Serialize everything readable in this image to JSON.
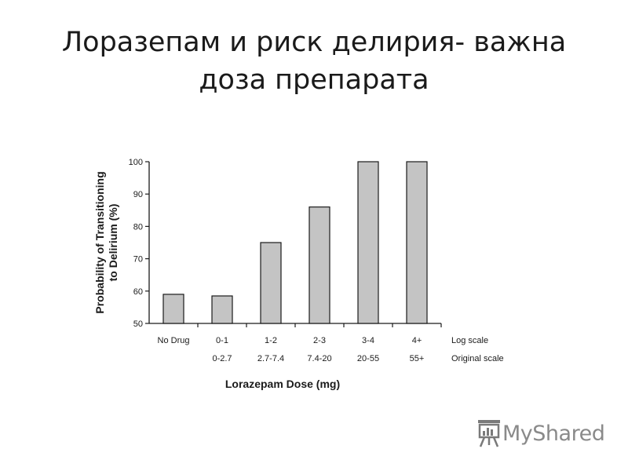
{
  "slide": {
    "title_line1": "Лоразепам и риск делирия- важна",
    "title_line2": "доза препарата"
  },
  "chart_data": {
    "type": "bar",
    "categories": [
      "No Drug",
      "0-1",
      "1-2",
      "2-3",
      "3-4",
      "4+"
    ],
    "secondary_categories": [
      "",
      "0-2.7",
      "2.7-7.4",
      "7.4-20",
      "20-55",
      "55+"
    ],
    "row_labels": [
      "Log scale",
      "Original scale"
    ],
    "values": [
      59,
      58.5,
      75,
      86,
      100,
      100
    ],
    "title": "",
    "xlabel": "Lorazepam Dose (mg)",
    "ylabel_line1": "Probability of Transitioning",
    "ylabel_line2": "to Delirium (%)",
    "ylim": [
      50,
      100
    ],
    "yticks": [
      "50",
      "60",
      "70",
      "80",
      "90",
      "100"
    ],
    "grid": false,
    "bar_color": "#c4c4c4",
    "bar_edge_color": "#1a1a1a"
  },
  "logo": {
    "text": "MyShared",
    "icon": "presentation-board-icon",
    "color": "#8a8a8a"
  }
}
